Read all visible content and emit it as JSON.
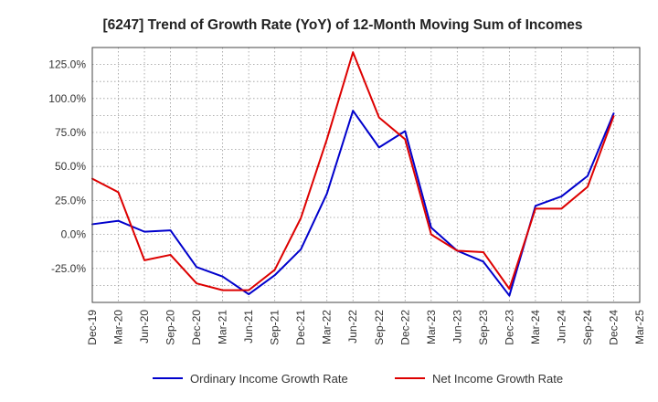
{
  "chart_data": {
    "type": "line",
    "title": "[6247]  Trend of Growth Rate (YoY) of 12-Month Moving Sum of Incomes",
    "xlabel": "",
    "ylabel": "",
    "ylim": [
      -50,
      137.5
    ],
    "yticks": [
      125.0,
      100.0,
      75.0,
      50.0,
      25.0,
      0.0,
      -25.0
    ],
    "ytick_labels": [
      "125.0%",
      "100.0%",
      "75.0%",
      "50.0%",
      "25.0%",
      "0.0%",
      "-25.0%"
    ],
    "x_tick_labels": [
      "Dec-19",
      "Mar-20",
      "Jun-20",
      "Sep-20",
      "Dec-20",
      "Mar-21",
      "Jun-21",
      "Sep-21",
      "Dec-21",
      "Mar-22",
      "Jun-22",
      "Sep-22",
      "Dec-22",
      "Mar-23",
      "Jun-23",
      "Sep-23",
      "Dec-23",
      "Mar-24",
      "Jun-24",
      "Sep-24",
      "Dec-24",
      "Mar-25"
    ],
    "grid": true,
    "legend_position": "bottom",
    "series": [
      {
        "name": "Ordinary Income Growth Rate",
        "color": "#0000cc",
        "values": [
          7.5,
          10,
          2,
          3,
          -24,
          -31,
          -44,
          -30,
          -11,
          30,
          91,
          64,
          76,
          5,
          -12,
          -20,
          -45,
          21,
          28,
          43,
          89,
          null
        ]
      },
      {
        "name": "Net Income Growth Rate",
        "color": "#dd0000",
        "values": [
          41,
          31,
          -19,
          -15,
          -36,
          -41,
          -41,
          -26,
          12,
          70,
          134,
          86,
          70,
          0,
          -12,
          -13,
          -40,
          19,
          19,
          35,
          87,
          null
        ]
      }
    ]
  }
}
